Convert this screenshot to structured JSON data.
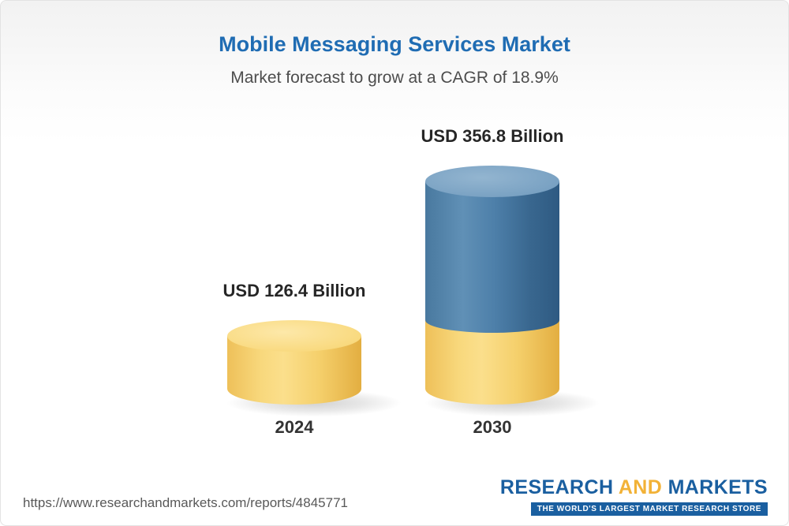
{
  "header": {
    "title": "Mobile Messaging Services Market",
    "subtitle": "Market forecast to grow at a CAGR of 18.9%"
  },
  "chart_data": {
    "type": "bar",
    "variant": "3d-cylinder",
    "title": "Mobile Messaging Services Market",
    "subtitle": "Market forecast to grow at a CAGR of 18.9%",
    "unit": "USD Billion",
    "cagr": "18.9%",
    "categories": [
      "2024",
      "2030"
    ],
    "values": [
      126.4,
      356.8
    ],
    "value_labels": [
      "USD 126.4 Billion",
      "USD 356.8 Billion"
    ],
    "colors": {
      "bar_2024": "#f5d06c",
      "bar_2030_top": "#3f6f9d",
      "bar_2030_base": "#f5d06c"
    },
    "legend": "none",
    "grid": false
  },
  "footer": {
    "url": "https://www.researchandmarkets.com/reports/4845771",
    "logo": {
      "research": "RESEARCH",
      "and": "AND",
      "markets": "MARKETS",
      "tagline": "THE WORLD'S LARGEST MARKET RESEARCH STORE"
    }
  },
  "theme": {
    "title_color": "#1f6cb3",
    "subtitle_color": "#4d4d4d",
    "logo_blue": "#1a5fa0",
    "logo_gold": "#f2b237"
  }
}
